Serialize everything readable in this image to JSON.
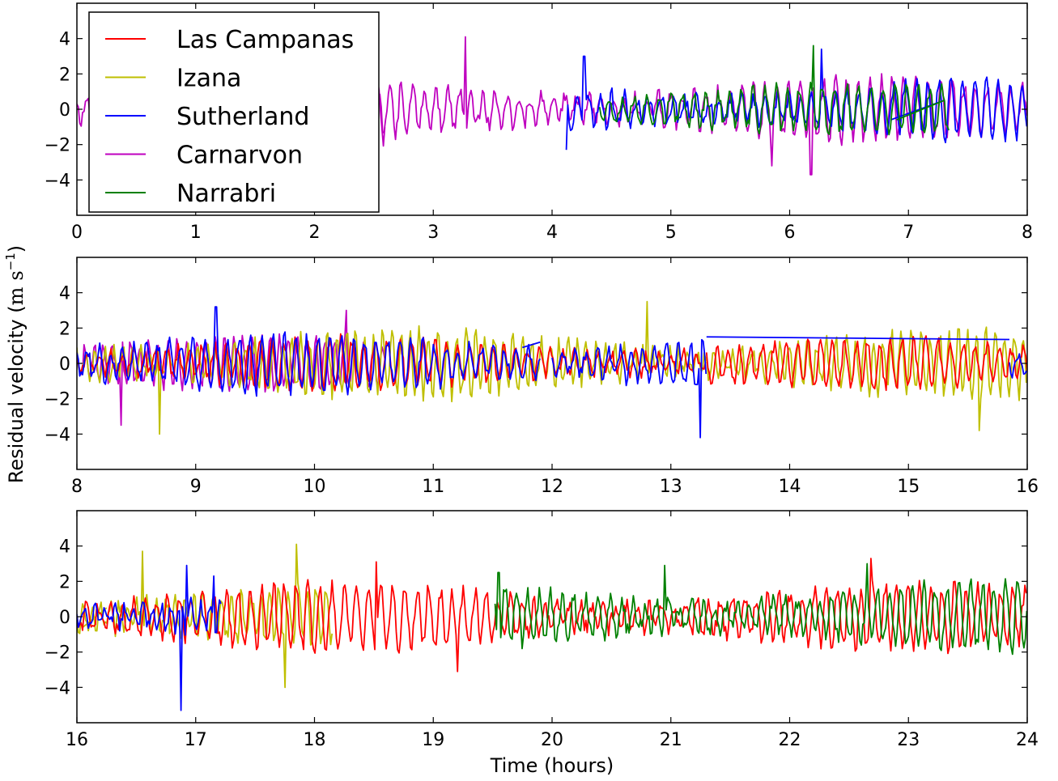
{
  "figure": {
    "ylabel_main": "Residual velocity (",
    "ylabel_unit_m": "m",
    "ylabel_unit_s": "s",
    "ylabel_exp": "−1",
    "ylabel_close": ")",
    "xlabel": "Time (hours)"
  },
  "colors": {
    "Las Campanas": "#ff0000",
    "Izana": "#bfbf00",
    "Sutherland": "#0000ff",
    "Carnarvon": "#bf00bf",
    "Narrabri": "#008000"
  },
  "legend": {
    "placement": "top-left of first panel",
    "entries": [
      "Las Campanas",
      "Izana",
      "Sutherland",
      "Carnarvon",
      "Narrabri"
    ]
  },
  "chart_data": [
    {
      "type": "line",
      "xlim": [
        0,
        8
      ],
      "ylim": [
        -6,
        6
      ],
      "xticks": [
        "0",
        "1",
        "2",
        "3",
        "4",
        "5",
        "6",
        "7",
        "8"
      ],
      "yticks": [
        "4",
        "2",
        "0",
        "−2",
        "−4"
      ],
      "series": [
        {
          "name": "Carnarvon",
          "segments": [
            [
              0.0,
              2.6
            ],
            [
              2.55,
              8.0
            ]
          ],
          "amplitude": 1.5,
          "period": 0.1,
          "seed": 11,
          "spikes": [
            [
              3.27,
              4.1
            ],
            [
              6.18,
              -3.7
            ],
            [
              0.12,
              -2.6
            ],
            [
              5.85,
              -3.2
            ]
          ]
        },
        {
          "name": "Sutherland",
          "segments": [
            [
              4.12,
              8.0
            ]
          ],
          "amplitude": 1.4,
          "period": 0.1,
          "seed": 23,
          "spikes": [
            [
              4.27,
              3.0
            ],
            [
              6.27,
              3.4
            ],
            [
              4.12,
              -2.3
            ]
          ],
          "bridges": [
            [
              6.85,
              7.3
            ]
          ]
        },
        {
          "name": "Narrabri",
          "segments": [
            [
              4.4,
              7.35
            ]
          ],
          "amplitude": 1.2,
          "period": 0.1,
          "seed": 37,
          "spikes": [
            [
              6.2,
              3.6
            ]
          ],
          "bridges": [
            [
              6.9,
              7.3
            ]
          ]
        }
      ]
    },
    {
      "type": "line",
      "xlim": [
        8,
        16
      ],
      "ylim": [
        -6,
        6
      ],
      "xticks": [
        "8",
        "9",
        "10",
        "11",
        "12",
        "13",
        "14",
        "15",
        "16"
      ],
      "yticks": [
        "4",
        "2",
        "0",
        "−2",
        "−4"
      ],
      "series": [
        {
          "name": "Las Campanas",
          "segments": [
            [
              8.0,
              13.3
            ],
            [
              13.3,
              16.0
            ]
          ],
          "amplitude": 1.2,
          "period": 0.1,
          "seed": 51,
          "spikes": []
        },
        {
          "name": "Izana",
          "segments": [
            [
              8.0,
              16.0
            ]
          ],
          "amplitude": 1.6,
          "period": 0.08,
          "seed": 63,
          "spikes": [
            [
              12.8,
              3.5
            ],
            [
              15.6,
              -3.8
            ],
            [
              8.7,
              -4.0
            ]
          ]
        },
        {
          "name": "Carnarvon",
          "segments": [
            [
              8.0,
              10.6
            ]
          ],
          "amplitude": 1.3,
          "period": 0.08,
          "seed": 71,
          "spikes": [
            [
              10.27,
              3.0
            ],
            [
              8.37,
              -3.5
            ]
          ]
        },
        {
          "name": "Sutherland",
          "segments": [
            [
              8.0,
              11.9
            ],
            [
              12.0,
              13.3
            ],
            [
              15.85,
              16.0
            ]
          ],
          "amplitude": 1.4,
          "period": 0.1,
          "seed": 83,
          "spikes": [
            [
              9.17,
              3.2
            ],
            [
              13.25,
              -4.2
            ]
          ],
          "bridges": [
            [
              13.3,
              15.85
            ],
            [
              11.75,
              11.9
            ]
          ],
          "bridge_values": [
            [
              1.5,
              1.35
            ],
            [
              0.9,
              1.2
            ]
          ]
        }
      ]
    },
    {
      "type": "line",
      "xlim": [
        16,
        24
      ],
      "ylim": [
        -6,
        6
      ],
      "xticks": [
        "16",
        "17",
        "18",
        "19",
        "20",
        "21",
        "22",
        "23",
        "24"
      ],
      "yticks": [
        "4",
        "2",
        "0",
        "−2",
        "−4"
      ],
      "series": [
        {
          "name": "Las Campanas",
          "segments": [
            [
              16.0,
              24.0
            ]
          ],
          "amplitude": 1.6,
          "period": 0.1,
          "seed": 91,
          "spikes": [
            [
              18.52,
              3.1
            ],
            [
              22.68,
              3.3
            ],
            [
              19.2,
              -3.1
            ]
          ]
        },
        {
          "name": "Izana",
          "segments": [
            [
              16.0,
              18.15
            ]
          ],
          "amplitude": 1.6,
          "period": 0.08,
          "seed": 97,
          "spikes": [
            [
              17.85,
              4.1
            ],
            [
              16.55,
              3.7
            ],
            [
              17.75,
              -4.0
            ]
          ],
          "bridges": [
            [
              16.05,
              16.25
            ]
          ]
        },
        {
          "name": "Sutherland",
          "segments": [
            [
              16.0,
              17.22
            ]
          ],
          "amplitude": 1.3,
          "period": 0.08,
          "seed": 103,
          "spikes": [
            [
              16.88,
              -5.3
            ],
            [
              16.92,
              2.9
            ],
            [
              17.15,
              2.3
            ]
          ]
        },
        {
          "name": "Narrabri",
          "segments": [
            [
              19.52,
              24.0
            ]
          ],
          "amplitude": 1.6,
          "period": 0.1,
          "seed": 109,
          "spikes": [
            [
              20.95,
              2.9
            ],
            [
              22.65,
              3.0
            ],
            [
              19.55,
              2.5
            ]
          ]
        }
      ]
    }
  ]
}
